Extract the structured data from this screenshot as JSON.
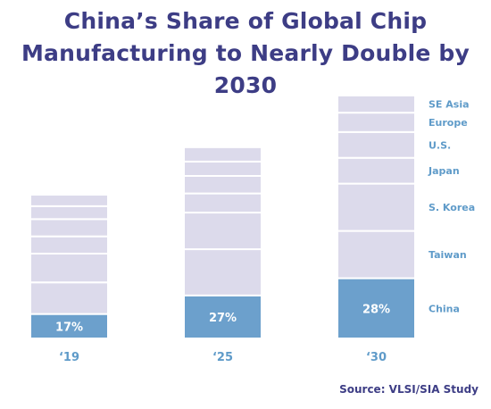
{
  "title_lines": [
    "China’s Share of Global Chip",
    "Manufacturing to Nearly Double by 2030"
  ],
  "source": "Source: VLSI/SIA Study",
  "colors": {
    "title": "#3d3d85",
    "segment_fill": "#dcdaeb",
    "segment_stroke": "#ffffff",
    "china_fill": "#6ca0cc",
    "label": "#5f9bc9",
    "china_label": "#ffffff"
  },
  "chart_data": {
    "type": "bar",
    "stacked": true,
    "categories": [
      "‘19",
      "‘25",
      "‘30"
    ],
    "units": "share of global chip manufacturing capacity",
    "segments_order_bottom_to_top": [
      "China",
      "Taiwan",
      "S. Korea",
      "Japan",
      "U.S.",
      "Europe",
      "SE Asia"
    ],
    "series": [
      {
        "name": "China",
        "values": [
          17,
          27,
          28
        ],
        "labels": [
          "17%",
          "27%",
          "28%"
        ]
      },
      {
        "name": "Taiwan",
        "values": [
          22,
          29,
          22
        ]
      },
      {
        "name": "S. Korea",
        "values": [
          20,
          23,
          22
        ]
      },
      {
        "name": "Japan",
        "values": [
          12,
          12,
          12
        ]
      },
      {
        "name": "U.S.",
        "values": [
          12,
          11,
          12
        ]
      },
      {
        "name": "Europe",
        "values": [
          9,
          9,
          9
        ]
      },
      {
        "name": "SE Asia",
        "values": [
          8,
          9,
          8
        ]
      }
    ],
    "bar_heights_relative": [
      1.0,
      1.33,
      1.69
    ],
    "legend_placement": "right of last bar",
    "grid": false,
    "xlabel": "",
    "ylabel": ""
  }
}
